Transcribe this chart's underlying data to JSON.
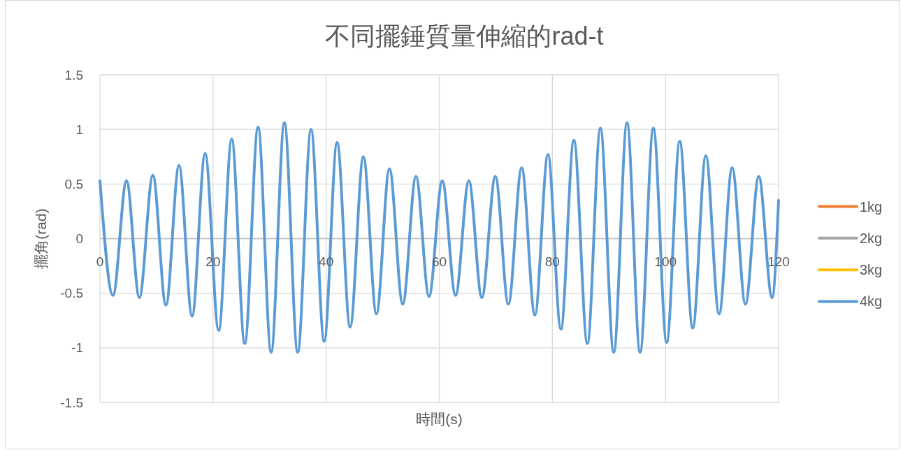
{
  "chart_data": {
    "type": "line",
    "title": "不同擺錘質量伸縮的rad-t",
    "xlabel": "時間(s)",
    "ylabel": "擺角(rad)",
    "x": [
      0,
      2.31,
      4.7,
      6.97,
      9.36,
      11.67,
      13.98,
      16.29,
      18.6,
      20.99,
      23.3,
      25.61,
      27.96,
      30.27,
      32.62,
      34.97,
      37.32,
      39.65,
      41.93,
      44.24,
      46.58,
      48.89,
      51.19,
      53.54,
      55.88,
      58.19,
      60.53,
      62.88,
      65.23,
      67.53,
      69.92,
      72.22,
      74.57,
      76.91,
      79.22,
      81.5,
      83.8,
      86.19,
      88.49,
      90.85,
      93.2,
      95.51,
      97.86,
      100.21,
      102.52,
      104.82,
      107.13,
      109.48,
      111.79,
      114.14,
      116.49,
      118.85,
      120
    ],
    "series": [
      {
        "name": "1kg",
        "color": "#ed7d31",
        "values": [
          null,
          null,
          null,
          null,
          null,
          null,
          null,
          null,
          null,
          null,
          null,
          null,
          null,
          null,
          null,
          null,
          null,
          null,
          null,
          null,
          null,
          null,
          null,
          null,
          null,
          null,
          null,
          null,
          null,
          null,
          null,
          null,
          null,
          null,
          null,
          null,
          null,
          null,
          null,
          null,
          null,
          null,
          null,
          null,
          null,
          null,
          null,
          null,
          null,
          null,
          null,
          null,
          null
        ]
      },
      {
        "name": "2kg",
        "color": "#a5a5a5",
        "values": [
          null,
          null,
          null,
          null,
          null,
          null,
          null,
          null,
          null,
          null,
          null,
          null,
          null,
          null,
          null,
          null,
          null,
          null,
          null,
          null,
          null,
          null,
          null,
          null,
          null,
          null,
          null,
          null,
          null,
          null,
          null,
          null,
          null,
          null,
          null,
          null,
          null,
          null,
          null,
          null,
          null,
          null,
          null,
          null,
          null,
          null,
          null,
          null,
          null,
          null,
          null,
          null,
          null
        ]
      },
      {
        "name": "3kg",
        "color": "#ffc000",
        "values": [
          null,
          null,
          null,
          null,
          null,
          null,
          null,
          null,
          null,
          null,
          null,
          null,
          null,
          null,
          null,
          null,
          null,
          null,
          null,
          null,
          null,
          null,
          null,
          null,
          null,
          null,
          null,
          null,
          null,
          null,
          null,
          null,
          null,
          null,
          null,
          null,
          null,
          null,
          null,
          null,
          null,
          null,
          null,
          null,
          null,
          null,
          null,
          null,
          null,
          null,
          null,
          null,
          null
        ]
      },
      {
        "name": "4kg",
        "color": "#5b9bd5",
        "values": [
          0.53,
          -0.52,
          0.53,
          -0.54,
          0.58,
          -0.61,
          0.67,
          -0.71,
          0.78,
          -0.84,
          0.91,
          -0.96,
          1.02,
          -1.04,
          1.06,
          -1.04,
          1.0,
          -0.94,
          0.88,
          -0.81,
          0.75,
          -0.69,
          0.64,
          -0.6,
          0.57,
          -0.53,
          0.53,
          -0.52,
          0.53,
          -0.54,
          0.57,
          -0.6,
          0.65,
          -0.7,
          0.77,
          -0.83,
          0.9,
          -0.96,
          1.01,
          -1.04,
          1.06,
          -1.04,
          1.01,
          -0.95,
          0.89,
          -0.82,
          0.76,
          -0.69,
          0.65,
          -0.6,
          0.57,
          -0.54,
          0.35
        ]
      }
    ],
    "xlim": [
      0,
      120
    ],
    "ylim": [
      -1.5,
      1.5
    ],
    "xticks": [
      0,
      20,
      40,
      60,
      80,
      100,
      120
    ],
    "yticks": [
      -1.5,
      -1,
      -0.5,
      0,
      0.5,
      1,
      1.5
    ],
    "grid": true,
    "legend": "right"
  }
}
